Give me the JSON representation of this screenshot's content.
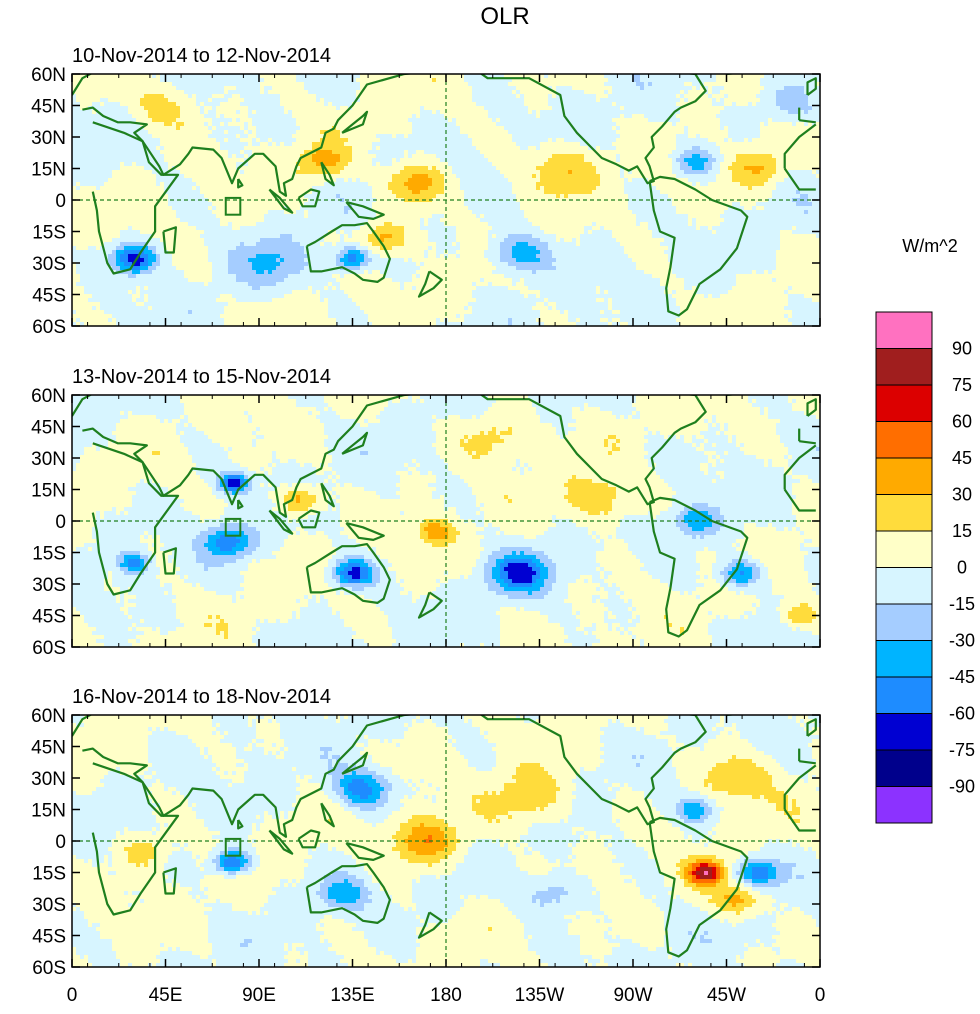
{
  "figure": {
    "title": "OLR",
    "units": "W/m^2",
    "colors": {
      "coast": "#1e7f1e",
      "frame": "#000000"
    }
  },
  "axes": {
    "lat_labels": [
      "60N",
      "45N",
      "30N",
      "15N",
      "0",
      "15S",
      "30S",
      "45S",
      "60S"
    ],
    "lon_labels": [
      "0",
      "45E",
      "90E",
      "135E",
      "180",
      "135W",
      "90W",
      "45W",
      "0"
    ],
    "lat_range": [
      -60,
      60
    ],
    "lon_range": [
      0,
      360
    ]
  },
  "panels": [
    {
      "title": "10-Nov-2014 to 12-Nov-2014",
      "features": [
        {
          "lon": 30,
          "lat": -28,
          "r": 7,
          "v": -70
        },
        {
          "lon": 45,
          "lat": 45,
          "r": 12,
          "v": 25
        },
        {
          "lon": 120,
          "lat": 18,
          "r": 8,
          "v": 35
        },
        {
          "lon": 165,
          "lat": 8,
          "r": 10,
          "v": 40
        },
        {
          "lon": 135,
          "lat": -28,
          "r": 6,
          "v": -60
        },
        {
          "lon": 150,
          "lat": -18,
          "r": 8,
          "v": 35
        },
        {
          "lon": 215,
          "lat": -25,
          "r": 10,
          "v": -45
        },
        {
          "lon": 235,
          "lat": 15,
          "r": 12,
          "v": 30
        },
        {
          "lon": 300,
          "lat": 18,
          "r": 7,
          "v": -40
        },
        {
          "lon": 330,
          "lat": 15,
          "r": 9,
          "v": 30
        },
        {
          "lon": 95,
          "lat": -30,
          "r": 12,
          "v": -25
        },
        {
          "lon": 345,
          "lat": 45,
          "r": 10,
          "v": -25
        }
      ]
    },
    {
      "title": "13-Nov-2014 to 15-Nov-2014",
      "features": [
        {
          "lon": 78,
          "lat": 18,
          "r": 5,
          "v": -70
        },
        {
          "lon": 110,
          "lat": 10,
          "r": 7,
          "v": 45
        },
        {
          "lon": 75,
          "lat": -10,
          "r": 8,
          "v": -55
        },
        {
          "lon": 135,
          "lat": -25,
          "r": 7,
          "v": -65
        },
        {
          "lon": 215,
          "lat": -25,
          "r": 10,
          "v": -60
        },
        {
          "lon": 175,
          "lat": -5,
          "r": 6,
          "v": 40
        },
        {
          "lon": 255,
          "lat": 10,
          "r": 12,
          "v": 30
        },
        {
          "lon": 300,
          "lat": 0,
          "r": 8,
          "v": -40
        },
        {
          "lon": 322,
          "lat": -25,
          "r": 7,
          "v": -55
        },
        {
          "lon": 30,
          "lat": -20,
          "r": 5,
          "v": -55
        },
        {
          "lon": 205,
          "lat": 40,
          "r": 12,
          "v": 25
        },
        {
          "lon": 350,
          "lat": -45,
          "r": 6,
          "v": 30
        }
      ]
    },
    {
      "title": "16-Nov-2014 to 18-Nov-2014",
      "features": [
        {
          "lon": 140,
          "lat": 25,
          "r": 10,
          "v": -55
        },
        {
          "lon": 170,
          "lat": 0,
          "r": 12,
          "v": 45
        },
        {
          "lon": 220,
          "lat": 20,
          "r": 14,
          "v": 30
        },
        {
          "lon": 77,
          "lat": -10,
          "r": 6,
          "v": -70
        },
        {
          "lon": 305,
          "lat": -15,
          "r": 6,
          "v": 80
        },
        {
          "lon": 320,
          "lat": -28,
          "r": 8,
          "v": 40
        },
        {
          "lon": 330,
          "lat": -15,
          "r": 7,
          "v": -55
        },
        {
          "lon": 300,
          "lat": 15,
          "r": 6,
          "v": -40
        },
        {
          "lon": 320,
          "lat": 30,
          "r": 12,
          "v": 30
        },
        {
          "lon": 35,
          "lat": -5,
          "r": 8,
          "v": 25
        },
        {
          "lon": 130,
          "lat": -25,
          "r": 8,
          "v": -35
        },
        {
          "lon": 230,
          "lat": -25,
          "r": 10,
          "v": -30
        }
      ]
    }
  ],
  "colorbar": {
    "labels": [
      "90",
      "75",
      "60",
      "45",
      "30",
      "15",
      "0",
      "-15",
      "-30",
      "-45",
      "-60",
      "-75",
      "-90"
    ],
    "bins": [
      {
        "min": 90,
        "color": "#ff71c0"
      },
      {
        "min": 75,
        "color": "#a01e1e"
      },
      {
        "min": 60,
        "color": "#dc0000"
      },
      {
        "min": 45,
        "color": "#ff6e00"
      },
      {
        "min": 30,
        "color": "#ffaa00"
      },
      {
        "min": 15,
        "color": "#ffdc3c"
      },
      {
        "min": 0,
        "color": "#ffffc8"
      },
      {
        "min": -15,
        "color": "#d7f5ff"
      },
      {
        "min": -30,
        "color": "#a5cdff"
      },
      {
        "min": -45,
        "color": "#00b4ff"
      },
      {
        "min": -60,
        "color": "#1e8cff"
      },
      {
        "min": -75,
        "color": "#0000d2"
      },
      {
        "min": -90,
        "color": "#00008c"
      },
      {
        "min": -9999,
        "color": "#8c32ff"
      }
    ]
  }
}
